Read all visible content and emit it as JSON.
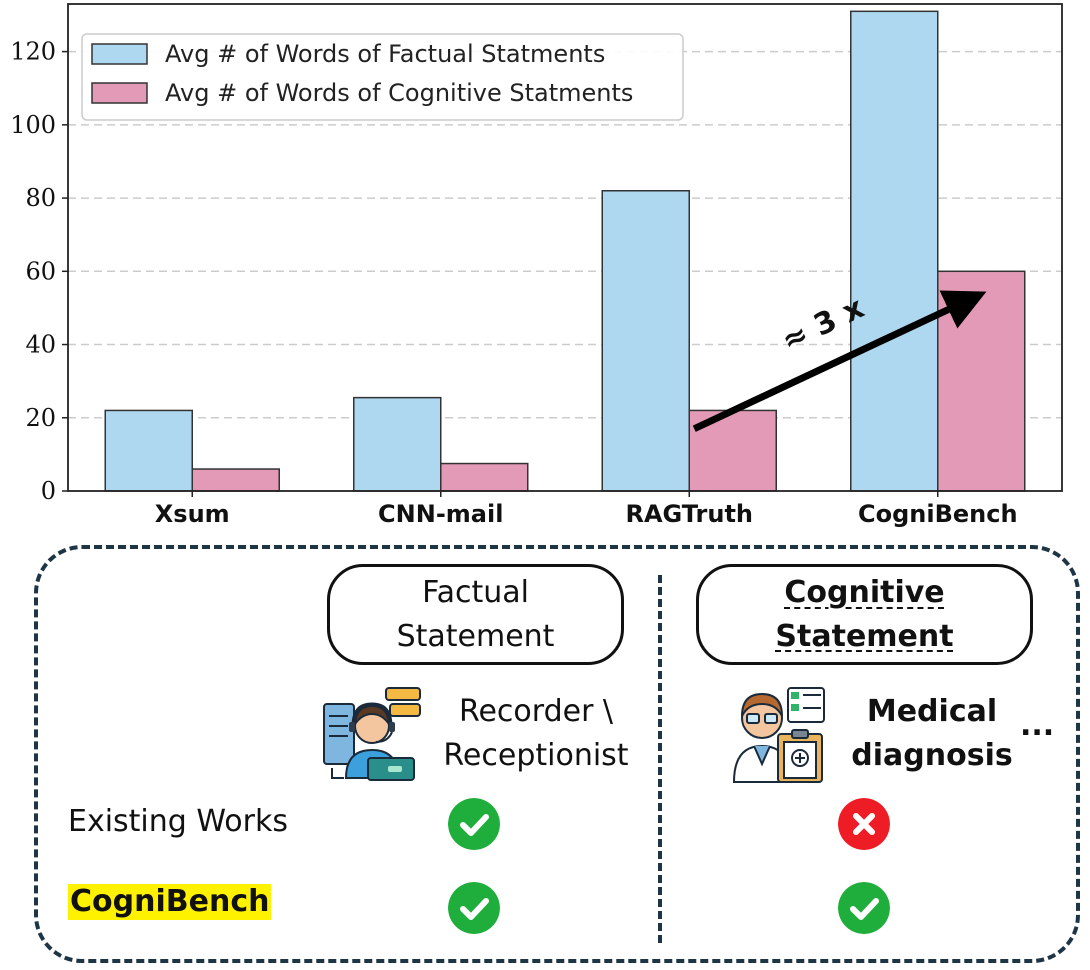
{
  "chart_data": {
    "type": "bar",
    "categories": [
      "Xsum",
      "CNN-mail",
      "RAGTruth",
      "CogniBench"
    ],
    "series": [
      {
        "name": "Avg # of Words of Factual Statments",
        "values": [
          22,
          25.5,
          82,
          131
        ],
        "color": "#add8f0"
      },
      {
        "name": "Avg # of Words of Cognitive Statments",
        "values": [
          6,
          7.5,
          22,
          60
        ],
        "color": "#e29ab6"
      }
    ],
    "ylim": [
      0,
      133
    ],
    "yticks": [
      0,
      20,
      40,
      60,
      80,
      100,
      120
    ],
    "grid": "y-dashed",
    "legend_position": "top-left",
    "annotation": {
      "text": "≈ 3 x",
      "from": [
        "RAGTruth",
        17
      ],
      "to": [
        "CogniBench",
        55
      ]
    }
  },
  "panel": {
    "factual_header": "Factual\nStatement",
    "cognitive_header": "Cognitive\nStatement",
    "factual_role": "Recorder \\\nReceptionist",
    "cognitive_role": "Medical\ndiagnosis",
    "ellipsis": "...",
    "rows": [
      {
        "label": "Existing Works",
        "factual": "check",
        "cognitive": "cross"
      },
      {
        "label": "CogniBench",
        "factual": "check",
        "cognitive": "check",
        "highlight": "#fff200"
      }
    ],
    "icons": {
      "factual": "receptionist-icon",
      "cognitive": "doctor-icon"
    },
    "colors": {
      "check": "#1fae3c",
      "cross": "#ee1c25",
      "border": "#1e3545"
    }
  }
}
